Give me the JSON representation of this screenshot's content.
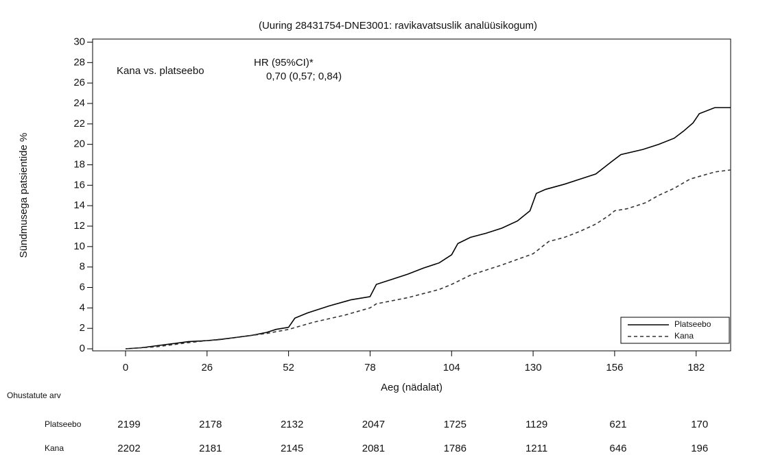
{
  "chart_data": {
    "type": "line",
    "title": "(Uuring 28431754-DNE3001: ravikavatsuslik analüüsikogum)",
    "xlabel": "Aeg (nädalat)",
    "ylabel": "Sündmusega patsientide %",
    "xlim": [
      -10.5,
      193
    ],
    "ylim": [
      -0.2,
      30.3
    ],
    "xticks": [
      0,
      26,
      52,
      78,
      104,
      130,
      156,
      182
    ],
    "yticks": [
      0,
      2,
      4,
      6,
      8,
      10,
      12,
      14,
      16,
      18,
      20,
      22,
      24,
      26,
      28,
      30
    ],
    "legend": "lower right",
    "annotations": [
      "Kana vs. platseebo",
      "HR (95%CI)*",
      "0,70 (0,57; 0,84)"
    ],
    "series": [
      {
        "name": "Platseebo",
        "color": "#000000",
        "dash": false,
        "x": [
          0,
          5,
          10,
          15,
          20,
          26,
          30,
          35,
          40,
          45,
          48,
          52,
          54,
          58,
          65,
          72,
          78,
          80,
          85,
          90,
          95,
          100,
          104,
          106,
          110,
          115,
          120,
          125,
          129,
          131,
          134,
          140,
          145,
          150,
          155,
          158,
          165,
          170,
          175,
          178,
          181,
          183,
          188,
          193
        ],
        "values": [
          0,
          0.1,
          0.3,
          0.5,
          0.7,
          0.8,
          0.9,
          1.1,
          1.3,
          1.6,
          1.9,
          2.1,
          3.0,
          3.5,
          4.2,
          4.8,
          5.1,
          6.3,
          6.8,
          7.3,
          7.9,
          8.4,
          9.2,
          10.3,
          10.9,
          11.3,
          11.8,
          12.5,
          13.5,
          15.2,
          15.6,
          16.1,
          16.6,
          17.1,
          18.3,
          19.0,
          19.5,
          20.0,
          20.6,
          21.3,
          22.1,
          23.0,
          23.6,
          23.6
        ]
      },
      {
        "name": "Kana",
        "color": "#333333",
        "dash": true,
        "x": [
          0,
          10,
          20,
          26,
          35,
          45,
          52,
          60,
          70,
          78,
          80,
          90,
          100,
          104,
          110,
          120,
          130,
          135,
          140,
          145,
          150,
          154,
          156,
          160,
          166,
          170,
          175,
          180,
          188,
          193
        ],
        "values": [
          0,
          0.2,
          0.6,
          0.8,
          1.1,
          1.5,
          1.9,
          2.6,
          3.3,
          4.0,
          4.4,
          5.0,
          5.8,
          6.3,
          7.2,
          8.2,
          9.3,
          10.5,
          10.9,
          11.5,
          12.2,
          13.0,
          13.5,
          13.7,
          14.3,
          15.0,
          15.7,
          16.6,
          17.3,
          17.5
        ]
      }
    ]
  },
  "risk_table": {
    "title": "Ohustatute arv",
    "rows": [
      {
        "name": "Platseebo",
        "counts": [
          2199,
          2178,
          2132,
          2047,
          1725,
          1129,
          621,
          170
        ]
      },
      {
        "name": "Kana",
        "counts": [
          2202,
          2181,
          2145,
          2081,
          1786,
          1211,
          646,
          196
        ]
      }
    ]
  }
}
